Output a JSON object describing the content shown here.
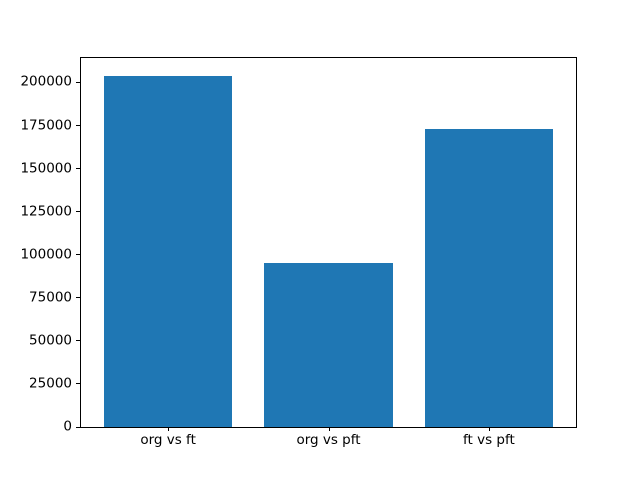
{
  "figure": {
    "background": "#ffffff",
    "frame_color": "#000000",
    "text_color": "#000000"
  },
  "chart_data": {
    "type": "bar",
    "title": "",
    "xlabel": "",
    "ylabel": "",
    "categories": [
      "org vs ft",
      "org vs pft",
      "ft vs pft"
    ],
    "values": [
      204000,
      95000,
      173000
    ],
    "bar_color": "#1f77b4",
    "bar_width": 0.8,
    "xlim": [
      -0.543,
      2.543
    ],
    "ylim": [
      0,
      214200
    ],
    "yticks": [
      0,
      25000,
      50000,
      75000,
      100000,
      125000,
      150000,
      175000,
      200000
    ],
    "grid": false,
    "legend": null
  }
}
